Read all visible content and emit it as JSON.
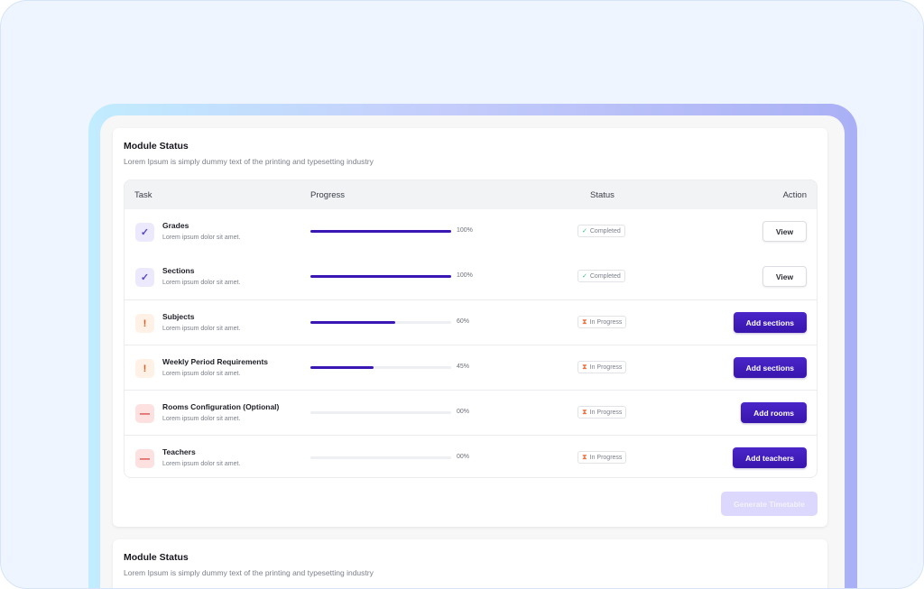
{
  "module_status": {
    "title": "Module Status",
    "subtitle": "Lorem Ipsum is simply dummy text of the printing and typesetting industry",
    "columns": {
      "task": "Task",
      "progress": "Progress",
      "status": "Status",
      "action": "Action"
    },
    "rows": [
      {
        "name": "Grades",
        "desc": "Lorem ipsum dolor sit amet.",
        "icon": "check-icon",
        "progress": 100,
        "progress_label": "100%",
        "status": "Completed",
        "status_icon": "check-icon",
        "action": "View"
      },
      {
        "name": "Sections",
        "desc": "Lorem ipsum dolor sit amet.",
        "icon": "check-icon",
        "progress": 100,
        "progress_label": "100%",
        "status": "Completed",
        "status_icon": "check-icon",
        "action": "View"
      },
      {
        "name": "Subjects",
        "desc": "Lorem ipsum dolor sit amet.",
        "icon": "exclamation-icon",
        "progress": 60,
        "progress_label": "60%",
        "status": "In Progress",
        "status_icon": "hourglass-icon",
        "action": "Add sections"
      },
      {
        "name": "Weekly Period Requirements",
        "desc": "Lorem ipsum dolor sit amet.",
        "icon": "exclamation-icon",
        "progress": 45,
        "progress_label": "45%",
        "status": "In Progress",
        "status_icon": "hourglass-icon",
        "action": "Add sections"
      },
      {
        "name": "Rooms Configuration (Optional)",
        "desc": "Lorem ipsum dolor sit amet.",
        "icon": "minus-icon",
        "progress": 0,
        "progress_label": "00%",
        "status": "In Progress",
        "status_icon": "hourglass-icon",
        "action": "Add rooms"
      },
      {
        "name": "Teachers",
        "desc": "Lorem ipsum dolor sit amet.",
        "icon": "minus-icon",
        "progress": 0,
        "progress_label": "00%",
        "status": "In Progress",
        "status_icon": "hourglass-icon",
        "action": "Add teachers"
      }
    ],
    "generate_label": "Generate Timetable"
  },
  "module_status_2": {
    "title": "Module Status",
    "subtitle": "Lorem Ipsum is simply dummy text of the printing and typesetting industry"
  },
  "colors": {
    "accent": "#3a17b5",
    "completed": "#2fbf8a",
    "in_progress": "#f07040",
    "danger": "#d42a2a"
  }
}
